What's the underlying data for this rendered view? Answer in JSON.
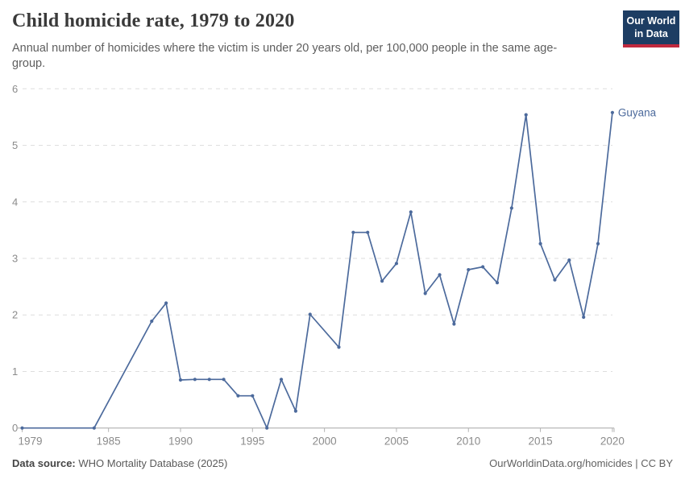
{
  "header": {
    "title": "Child homicide rate, 1979 to 2020",
    "subtitle": "Annual number of homicides where the victim is under 20 years old, per 100,000 people in the same age-group.",
    "logo": {
      "line1": "Our World",
      "line2": "in Data",
      "bg_color": "#1d3d63",
      "bar_color": "#c0293e"
    }
  },
  "footer": {
    "source_label": "Data source:",
    "source_value": " WHO Mortality Database (2025)",
    "credit": "OurWorldinData.org/homicides | CC BY"
  },
  "chart_data": {
    "type": "line",
    "title": "Child homicide rate, 1979 to 2020",
    "xlabel": "",
    "ylabel": "",
    "xlim": [
      1979,
      2020
    ],
    "ylim": [
      0,
      6
    ],
    "x_ticks": [
      1979,
      1985,
      1990,
      1995,
      2000,
      2005,
      2010,
      2015,
      2020
    ],
    "y_ticks": [
      0,
      1,
      2,
      3,
      4,
      5,
      6
    ],
    "grid": "horizontal-dashed",
    "legend_position": "end-of-line-label",
    "colors": {
      "line": "#4C6A9C",
      "grid": "#dedede",
      "axis": "#a6a6a6",
      "tick_text": "#8b8b8b"
    },
    "series": [
      {
        "name": "Guyana",
        "color": "#4C6A9C",
        "points": [
          [
            1979,
            0
          ],
          [
            1984,
            0
          ],
          [
            1988,
            1.89
          ],
          [
            1989,
            2.21
          ],
          [
            1990,
            0.85
          ],
          [
            1991,
            0.86
          ],
          [
            1992,
            0.86
          ],
          [
            1993,
            0.86
          ],
          [
            1994,
            0.57
          ],
          [
            1995,
            0.57
          ],
          [
            1996,
            0
          ],
          [
            1997,
            0.86
          ],
          [
            1998,
            0.3
          ],
          [
            1999,
            2.01
          ],
          [
            2001,
            1.43
          ],
          [
            2002,
            3.46
          ],
          [
            2003,
            3.46
          ],
          [
            2004,
            2.6
          ],
          [
            2005,
            2.91
          ],
          [
            2006,
            3.82
          ],
          [
            2007,
            2.38
          ],
          [
            2008,
            2.71
          ],
          [
            2009,
            1.84
          ],
          [
            2010,
            2.8
          ],
          [
            2011,
            2.85
          ],
          [
            2012,
            2.57
          ],
          [
            2013,
            3.89
          ],
          [
            2014,
            5.54
          ],
          [
            2015,
            3.26
          ],
          [
            2016,
            2.62
          ],
          [
            2017,
            2.97
          ],
          [
            2018,
            1.96
          ],
          [
            2019,
            3.26
          ],
          [
            2020,
            5.58
          ]
        ]
      }
    ]
  }
}
